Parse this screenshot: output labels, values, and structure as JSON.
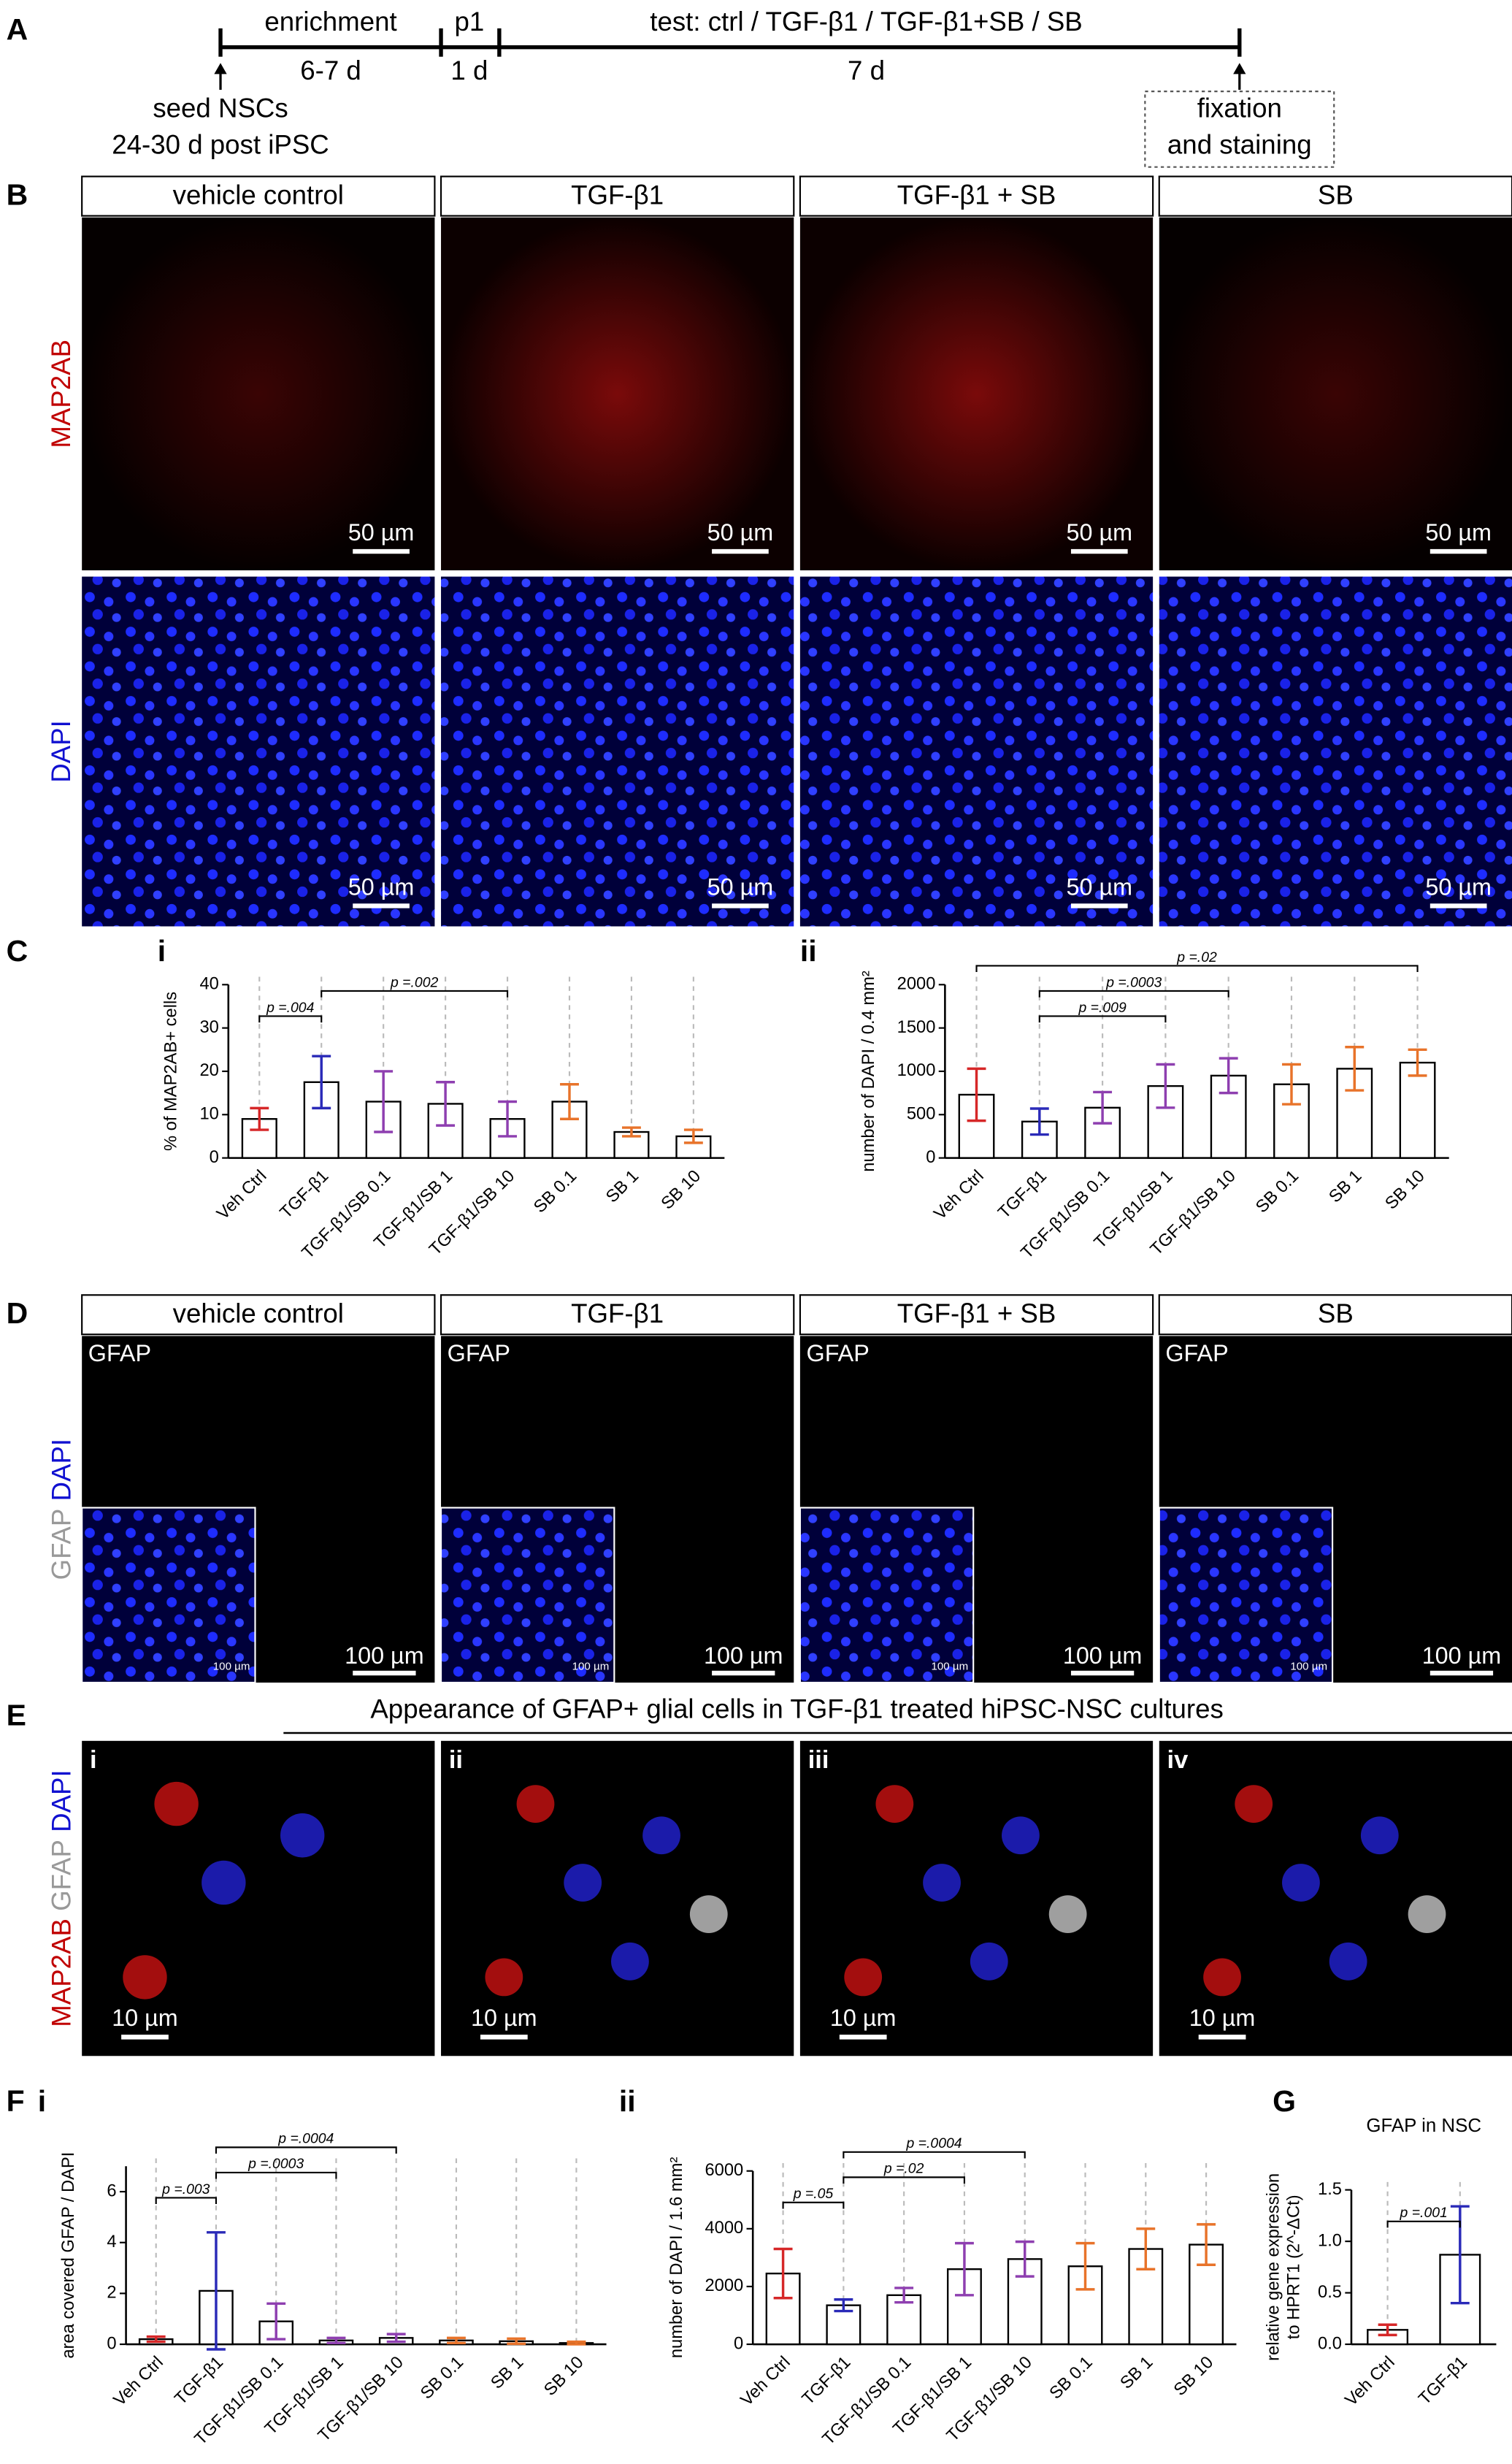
{
  "figure": {
    "panel_letters": [
      "A",
      "B",
      "C",
      "D",
      "E",
      "F",
      "G"
    ],
    "timeline": {
      "stages": [
        "enrichment",
        "p1",
        "test: ctrl / TGF-β1 / TGF-β1+SB / SB"
      ],
      "durations": [
        "6-7 d",
        "1 d",
        "7 d"
      ],
      "start": [
        "seed NSCs",
        "24-30 d post iPSC"
      ],
      "end": [
        "fixation",
        "and staining"
      ]
    },
    "B": {
      "headers": [
        "vehicle control",
        "TGF-β1",
        "TGF-β1 + SB",
        "SB"
      ],
      "rows": [
        "MAP2AB",
        "DAPI"
      ],
      "scale": "50 µm"
    },
    "C_sub": [
      "i",
      "ii"
    ],
    "D": {
      "headers": [
        "vehicle control",
        "TGF-β1",
        "TGF-β1 + SB",
        "SB"
      ],
      "channel": "GFAP",
      "rows": [
        "GFAP",
        "DAPI"
      ],
      "scale": "100 µm"
    },
    "E": {
      "title": "Appearance of GFAP+ glial cells in TGF-β1 treated hiPSC-NSC cultures",
      "panels": [
        "i",
        "ii",
        "iii",
        "iv"
      ],
      "rows": [
        "MAP2AB",
        "GFAP",
        "DAPI"
      ],
      "scale": "10 µm"
    },
    "F_sub": [
      "i",
      "ii"
    ]
  },
  "chart_data": [
    {
      "type": "bar",
      "y_label": [
        "% of MAP2AB+ cells"
      ],
      "categories": [
        "Veh Ctrl",
        "TGF-β1",
        "TGF-β1/SB 0.1",
        "TGF-β1/SB 1",
        "TGF-β1/SB 10",
        "SB 0.1",
        "SB 1",
        "SB 10"
      ],
      "values": [
        9,
        17.5,
        13,
        12.5,
        9,
        13,
        6,
        5
      ],
      "errors": [
        2.5,
        6,
        7,
        5,
        4,
        4,
        1,
        1.5
      ],
      "colors": [
        "#d62728",
        "#2a2ab8",
        "#8e3fb0",
        "#8e3fb0",
        "#8e3fb0",
        "#e8732a",
        "#e8732a",
        "#e8732a"
      ],
      "ylim": [
        0,
        40
      ],
      "yticks": [
        0,
        10,
        20,
        30,
        40
      ],
      "annotations": [
        {
          "text": "p =.004",
          "between": [
            "Veh Ctrl",
            "TGF-β1"
          ]
        },
        {
          "text": "p =.002",
          "between": [
            "TGF-β1",
            "TGF-β1/SB 10"
          ]
        }
      ]
    },
    {
      "type": "bar",
      "y_label": [
        "number of DAPI / 0.4 mm²"
      ],
      "categories": [
        "Veh Ctrl",
        "TGF-β1",
        "TGF-β1/SB 0.1",
        "TGF-β1/SB 1",
        "TGF-β1/SB 10",
        "SB 0.1",
        "SB 1",
        "SB 10"
      ],
      "values": [
        730,
        420,
        580,
        830,
        950,
        850,
        1030,
        1100
      ],
      "errors": [
        300,
        150,
        180,
        250,
        200,
        230,
        250,
        150
      ],
      "colors": [
        "#d62728",
        "#2a2ab8",
        "#8e3fb0",
        "#8e3fb0",
        "#8e3fb0",
        "#e8732a",
        "#e8732a",
        "#e8732a"
      ],
      "ylim": [
        0,
        2000
      ],
      "yticks": [
        0,
        500,
        1000,
        1500,
        2000
      ],
      "annotations": [
        {
          "text": "p =.009",
          "between": [
            "TGF-β1",
            "TGF-β1/SB 1"
          ]
        },
        {
          "text": "p =.0003",
          "between": [
            "TGF-β1",
            "TGF-β1/SB 10"
          ]
        },
        {
          "text": "p =.02",
          "between": [
            "Veh Ctrl",
            "SB 10"
          ]
        }
      ]
    },
    {
      "type": "bar",
      "y_label": [
        "area covered GFAP / DAPI"
      ],
      "categories": [
        "Veh Ctrl",
        "TGF-β1",
        "TGF-β1/SB 0.1",
        "TGF-β1/SB 1",
        "TGF-β1/SB 10",
        "SB 0.1",
        "SB 1",
        "SB 10"
      ],
      "values": [
        0.2,
        2.1,
        0.9,
        0.15,
        0.25,
        0.15,
        0.12,
        0.05
      ],
      "errors": [
        0.1,
        2.3,
        0.7,
        0.1,
        0.15,
        0.1,
        0.1,
        0.05
      ],
      "colors": [
        "#d62728",
        "#2a2ab8",
        "#8e3fb0",
        "#8e3fb0",
        "#8e3fb0",
        "#e8732a",
        "#e8732a",
        "#e8732a"
      ],
      "ylim": [
        0,
        7
      ],
      "yticks": [
        0,
        2,
        4,
        6
      ],
      "annotations": [
        {
          "text": "p =.003",
          "between": [
            "Veh Ctrl",
            "TGF-β1"
          ]
        },
        {
          "text": "p =.0003",
          "between": [
            "TGF-β1",
            "TGF-β1/SB 1"
          ]
        },
        {
          "text": "p =.0004",
          "between": [
            "TGF-β1",
            "TGF-β1/SB 10"
          ]
        }
      ]
    },
    {
      "type": "bar",
      "y_label": [
        "number of DAPI / 1.6 mm²"
      ],
      "categories": [
        "Veh Ctrl",
        "TGF-β1",
        "TGF-β1/SB 0.1",
        "TGF-β1/SB 1",
        "TGF-β1/SB 10",
        "SB 0.1",
        "SB 1",
        "SB 10"
      ],
      "values": [
        2450,
        1350,
        1700,
        2600,
        2950,
        2700,
        3300,
        3450
      ],
      "errors": [
        850,
        200,
        250,
        900,
        600,
        800,
        700,
        700
      ],
      "colors": [
        "#d62728",
        "#2a2ab8",
        "#8e3fb0",
        "#8e3fb0",
        "#8e3fb0",
        "#e8732a",
        "#e8732a",
        "#e8732a"
      ],
      "ylim": [
        0,
        6000
      ],
      "yticks": [
        0,
        2000,
        4000,
        6000
      ],
      "annotations": [
        {
          "text": "p =.05",
          "between": [
            "Veh Ctrl",
            "TGF-β1"
          ]
        },
        {
          "text": "p =.02",
          "between": [
            "TGF-β1",
            "TGF-β1/SB 1"
          ]
        },
        {
          "text": "p =.0004",
          "between": [
            "TGF-β1",
            "TGF-β1/SB 10"
          ]
        }
      ]
    },
    {
      "type": "bar",
      "title": "GFAP in NSC",
      "y_label": [
        "relative gene expression",
        "to HPRT1 (2^-ΔCt)"
      ],
      "categories": [
        "Veh Ctrl",
        "TGF-β1"
      ],
      "values": [
        0.14,
        0.87
      ],
      "errors": [
        0.05,
        0.47
      ],
      "colors": [
        "#d62728",
        "#2a2ab8"
      ],
      "ylim": [
        0,
        1.5
      ],
      "yticks": [
        {
          "value": 0,
          "label": "0.0"
        },
        {
          "value": 0.5,
          "label": "0.5"
        },
        {
          "value": 1,
          "label": "1.0"
        },
        {
          "value": 1.5,
          "label": "1.5"
        }
      ],
      "annotations": [
        {
          "text": "p =.001",
          "between": [
            "Veh Ctrl",
            "TGF-β1"
          ]
        }
      ]
    }
  ]
}
